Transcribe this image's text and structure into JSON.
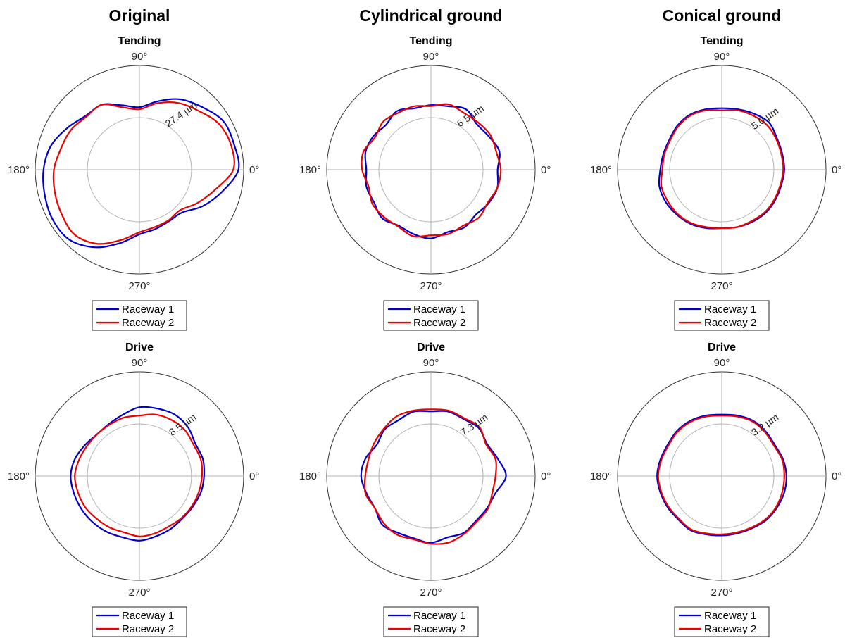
{
  "colors": {
    "raceway1": "#0000cc",
    "raceway2": "#ee0000",
    "grid": "#b3b3b3",
    "outer": "#333333"
  },
  "columns": [
    "Original",
    "Cylindrical ground",
    "Conical ground"
  ],
  "chart_data": [
    {
      "type": "polar-line",
      "column": "Original",
      "title": "Tending",
      "theta_labels": [
        "90°",
        "180°",
        "270°",
        "0°"
      ],
      "r_label": "27.4 µm",
      "r_label_angle": 60,
      "legend": [
        "Raceway 1",
        "Raceway 2"
      ],
      "legend_placement": "bottom",
      "series": [
        {
          "name": "Raceway 1",
          "theta_deg": [
            0,
            15,
            30,
            45,
            60,
            75,
            90,
            105,
            120,
            135,
            150,
            165,
            180,
            195,
            210,
            225,
            240,
            255,
            270,
            285,
            300,
            315,
            330,
            345
          ],
          "r_norm": [
            0.95,
            0.94,
            0.93,
            0.85,
            0.78,
            0.68,
            0.6,
            0.64,
            0.72,
            0.73,
            0.8,
            0.88,
            0.92,
            0.94,
            0.96,
            0.95,
            0.86,
            0.73,
            0.62,
            0.59,
            0.57,
            0.58,
            0.7,
            0.82
          ]
        },
        {
          "name": "Raceway 2",
          "theta_deg": [
            0,
            15,
            30,
            45,
            60,
            75,
            90,
            105,
            120,
            135,
            150,
            165,
            180,
            195,
            210,
            225,
            240,
            255,
            270,
            285,
            300,
            315,
            330,
            345
          ],
          "r_norm": [
            0.9,
            0.91,
            0.88,
            0.8,
            0.74,
            0.66,
            0.58,
            0.62,
            0.72,
            0.72,
            0.76,
            0.78,
            0.82,
            0.84,
            0.86,
            0.88,
            0.82,
            0.7,
            0.6,
            0.57,
            0.56,
            0.55,
            0.64,
            0.75
          ]
        }
      ]
    },
    {
      "type": "polar-line",
      "column": "Cylindrical ground",
      "title": "Tending",
      "theta_labels": [
        "90°",
        "180°",
        "270°",
        "0°"
      ],
      "r_label": "6.5 µm",
      "r_label_angle": 60,
      "legend": [
        "Raceway 1",
        "Raceway 2"
      ],
      "legend_placement": "bottom",
      "series": [
        {
          "name": "Raceway 1",
          "theta_deg": [
            0,
            15,
            30,
            45,
            60,
            75,
            90,
            105,
            120,
            135,
            150,
            165,
            180,
            195,
            210,
            225,
            240,
            255,
            270,
            285,
            300,
            315,
            330,
            345
          ],
          "r_norm": [
            0.64,
            0.68,
            0.64,
            0.62,
            0.67,
            0.63,
            0.62,
            0.61,
            0.65,
            0.61,
            0.64,
            0.65,
            0.62,
            0.64,
            0.63,
            0.66,
            0.62,
            0.64,
            0.66,
            0.62,
            0.64,
            0.61,
            0.64,
            0.66
          ]
        },
        {
          "name": "Raceway 2",
          "theta_deg": [
            0,
            15,
            30,
            45,
            60,
            75,
            90,
            105,
            120,
            135,
            150,
            165,
            180,
            195,
            210,
            225,
            240,
            255,
            270,
            285,
            300,
            315,
            330,
            345
          ],
          "r_norm": [
            0.67,
            0.65,
            0.66,
            0.64,
            0.63,
            0.65,
            0.61,
            0.63,
            0.63,
            0.65,
            0.62,
            0.67,
            0.66,
            0.62,
            0.65,
            0.64,
            0.63,
            0.66,
            0.63,
            0.64,
            0.62,
            0.65,
            0.63,
            0.66
          ]
        }
      ]
    },
    {
      "type": "polar-line",
      "column": "Conical ground",
      "title": "Tending",
      "theta_labels": [
        "90°",
        "180°",
        "270°",
        "0°"
      ],
      "r_label": "5.0 µm",
      "r_label_angle": 55,
      "legend": [
        "Raceway 1",
        "Raceway 2"
      ],
      "legend_placement": "bottom",
      "series": [
        {
          "name": "Raceway 1",
          "theta_deg": [
            0,
            15,
            30,
            45,
            60,
            75,
            90,
            105,
            120,
            135,
            150,
            165,
            180,
            195,
            210,
            225,
            240,
            255,
            270,
            285,
            300,
            315,
            330,
            345
          ],
          "r_norm": [
            0.6,
            0.6,
            0.61,
            0.64,
            0.62,
            0.6,
            0.59,
            0.6,
            0.61,
            0.6,
            0.58,
            0.58,
            0.59,
            0.62,
            0.62,
            0.61,
            0.6,
            0.58,
            0.56,
            0.57,
            0.58,
            0.59,
            0.59,
            0.59
          ]
        },
        {
          "name": "Raceway 2",
          "theta_deg": [
            0,
            15,
            30,
            45,
            60,
            75,
            90,
            105,
            120,
            135,
            150,
            165,
            180,
            195,
            210,
            225,
            240,
            255,
            270,
            285,
            300,
            315,
            330,
            345
          ],
          "r_norm": [
            0.59,
            0.59,
            0.6,
            0.61,
            0.6,
            0.59,
            0.57,
            0.59,
            0.6,
            0.59,
            0.57,
            0.57,
            0.57,
            0.6,
            0.6,
            0.6,
            0.59,
            0.57,
            0.56,
            0.57,
            0.57,
            0.58,
            0.58,
            0.58
          ]
        }
      ]
    },
    {
      "type": "polar-line",
      "column": "Original",
      "title": "Drive",
      "theta_labels": [
        "90°",
        "180°",
        "270°",
        "0°"
      ],
      "r_label": "8.5 µm",
      "r_label_angle": 55,
      "legend": [
        "Raceway 1",
        "Raceway 2"
      ],
      "legend_placement": "bottom",
      "series": [
        {
          "name": "Raceway 1",
          "theta_deg": [
            0,
            15,
            30,
            45,
            60,
            75,
            90,
            105,
            120,
            135,
            150,
            165,
            180,
            195,
            210,
            225,
            240,
            255,
            270,
            285,
            300,
            315,
            330,
            345
          ],
          "r_norm": [
            0.62,
            0.63,
            0.62,
            0.66,
            0.68,
            0.67,
            0.66,
            0.61,
            0.58,
            0.57,
            0.6,
            0.64,
            0.66,
            0.65,
            0.64,
            0.63,
            0.62,
            0.61,
            0.62,
            0.6,
            0.59,
            0.58,
            0.59,
            0.61
          ]
        },
        {
          "name": "Raceway 2",
          "theta_deg": [
            0,
            15,
            30,
            45,
            60,
            75,
            90,
            105,
            120,
            135,
            150,
            165,
            180,
            195,
            210,
            225,
            240,
            255,
            270,
            285,
            300,
            315,
            330,
            345
          ],
          "r_norm": [
            0.6,
            0.61,
            0.6,
            0.62,
            0.62,
            0.61,
            0.58,
            0.58,
            0.57,
            0.57,
            0.58,
            0.6,
            0.62,
            0.61,
            0.6,
            0.58,
            0.57,
            0.56,
            0.58,
            0.57,
            0.56,
            0.57,
            0.58,
            0.59
          ]
        }
      ]
    },
    {
      "type": "polar-line",
      "column": "Cylindrical ground",
      "title": "Drive",
      "theta_labels": [
        "90°",
        "180°",
        "270°",
        "0°"
      ],
      "r_label": "7.3 µm",
      "r_label_angle": 55,
      "legend": [
        "Raceway 1",
        "Raceway 2"
      ],
      "legend_placement": "bottom",
      "series": [
        {
          "name": "Raceway 1",
          "theta_deg": [
            0,
            15,
            30,
            45,
            60,
            75,
            90,
            105,
            120,
            135,
            150,
            165,
            180,
            195,
            210,
            225,
            240,
            255,
            270,
            285,
            300,
            315,
            330,
            345
          ],
          "r_norm": [
            0.72,
            0.66,
            0.62,
            0.65,
            0.63,
            0.64,
            0.62,
            0.64,
            0.62,
            0.63,
            0.6,
            0.65,
            0.67,
            0.64,
            0.62,
            0.66,
            0.63,
            0.62,
            0.64,
            0.61,
            0.63,
            0.61,
            0.62,
            0.64
          ]
        },
        {
          "name": "Raceway 2",
          "theta_deg": [
            0,
            15,
            30,
            45,
            60,
            75,
            90,
            105,
            120,
            135,
            150,
            165,
            180,
            195,
            210,
            225,
            240,
            255,
            270,
            285,
            300,
            315,
            330,
            345
          ],
          "r_norm": [
            0.62,
            0.64,
            0.61,
            0.66,
            0.64,
            0.65,
            0.64,
            0.65,
            0.66,
            0.64,
            0.63,
            0.62,
            0.63,
            0.65,
            0.62,
            0.64,
            0.65,
            0.63,
            0.65,
            0.66,
            0.64,
            0.62,
            0.63,
            0.61
          ]
        }
      ]
    },
    {
      "type": "polar-line",
      "column": "Conical ground",
      "title": "Drive",
      "theta_labels": [
        "90°",
        "180°",
        "270°",
        "0°"
      ],
      "r_label": "3.2 µm",
      "r_label_angle": 55,
      "legend": [
        "Raceway 1",
        "Raceway 2"
      ],
      "legend_placement": "bottom",
      "series": [
        {
          "name": "Raceway 1",
          "theta_deg": [
            0,
            15,
            30,
            45,
            60,
            75,
            90,
            105,
            120,
            135,
            150,
            165,
            180,
            195,
            210,
            225,
            240,
            255,
            270,
            285,
            300,
            315,
            330,
            345
          ],
          "r_norm": [
            0.62,
            0.61,
            0.59,
            0.6,
            0.61,
            0.6,
            0.59,
            0.6,
            0.61,
            0.61,
            0.6,
            0.61,
            0.62,
            0.61,
            0.6,
            0.59,
            0.6,
            0.58,
            0.57,
            0.57,
            0.58,
            0.6,
            0.61,
            0.62
          ]
        },
        {
          "name": "Raceway 2",
          "theta_deg": [
            0,
            15,
            30,
            45,
            60,
            75,
            90,
            105,
            120,
            135,
            150,
            165,
            180,
            195,
            210,
            225,
            240,
            255,
            270,
            285,
            300,
            315,
            330,
            345
          ],
          "r_norm": [
            0.6,
            0.6,
            0.58,
            0.59,
            0.6,
            0.59,
            0.58,
            0.59,
            0.6,
            0.6,
            0.59,
            0.6,
            0.61,
            0.6,
            0.59,
            0.58,
            0.59,
            0.57,
            0.56,
            0.56,
            0.57,
            0.59,
            0.6,
            0.6
          ]
        }
      ]
    }
  ]
}
